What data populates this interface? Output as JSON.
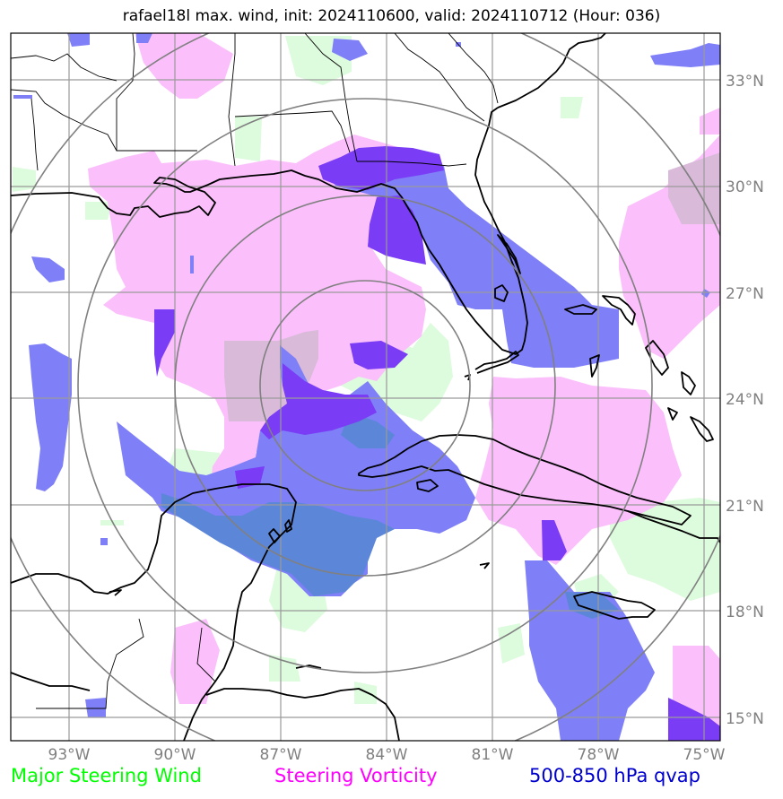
{
  "title": "rafael18l max. wind, init: 2024110600, valid: 2024110712 (Hour: 036)",
  "lat_labels": [
    "33°N",
    "30°N",
    "27°N",
    "24°N",
    "21°N",
    "18°N",
    "15°N"
  ],
  "lon_labels": [
    "93°W",
    "90°W",
    "87°W",
    "84°W",
    "81°W",
    "78°W",
    "75°W"
  ],
  "legend": {
    "wind": "Major Steering Wind",
    "vorticity": "Steering Vorticity",
    "qvap": "500-850 hPa qvap"
  },
  "colors": {
    "wind": "#00ff00",
    "vorticity": "#ff00ff",
    "qvap": "#0000cc",
    "wind_fill": "#ddfbdd",
    "vorticity_fill": "#fbc0fb",
    "qvap_fill": "#7f7ff8",
    "qvap_dark_fill": "#7a3cf5",
    "overlap_fill": "#d9bbd9",
    "overlap_blue_fill": "#5c86d8",
    "grid": "#9a9a9a",
    "rings": "#808080"
  }
}
